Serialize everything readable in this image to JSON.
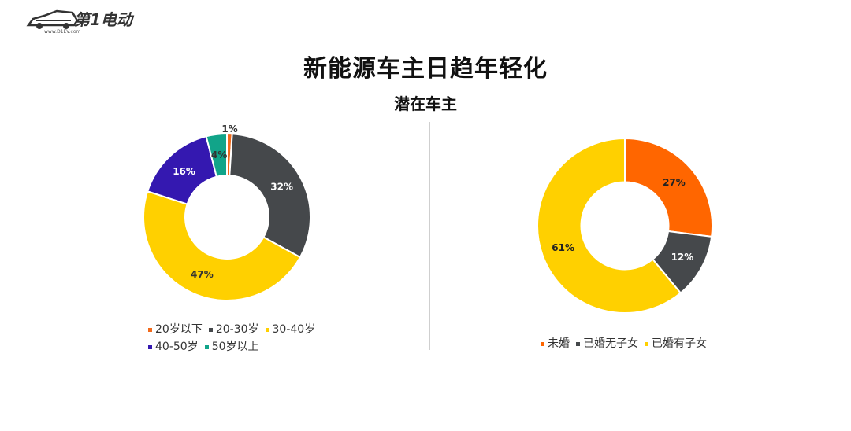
{
  "logo": {
    "text": "第1电动",
    "url_text": "www.D1EV.com"
  },
  "title": "新能源车主日趋年轻化",
  "subtitle": "潜在车主",
  "chart_data": [
    {
      "type": "pie",
      "donut": true,
      "title": "",
      "categories": [
        "20岁以下",
        "20-30岁",
        "30-40岁",
        "40-50岁",
        "50岁以上"
      ],
      "values": [
        1,
        32,
        47,
        16,
        4
      ],
      "labels": [
        "1%",
        "32%",
        "47%",
        "16%",
        "4%"
      ],
      "colors": [
        "#F26A1B",
        "#45484B",
        "#FFD000",
        "#3418B0",
        "#11A489"
      ],
      "label_colors": [
        "#333333",
        "#ffffff",
        "#333333",
        "#ffffff",
        "#333333"
      ],
      "legend_rows": [
        [
          "20岁以下",
          "20-30岁",
          "30-40岁"
        ],
        [
          "40-50岁",
          "50岁以上"
        ]
      ],
      "legend_position": "bottom"
    },
    {
      "type": "pie",
      "donut": true,
      "title": "",
      "categories": [
        "未婚",
        "已婚无子女",
        "已婚有子女"
      ],
      "values": [
        27,
        12,
        61
      ],
      "labels": [
        "27%",
        "12%",
        "61%"
      ],
      "colors": [
        "#FF6600",
        "#45484B",
        "#FFD000"
      ],
      "label_colors": [
        "#222222",
        "#ffffff",
        "#222222"
      ],
      "legend_rows": [
        [
          "未婚",
          "已婚无子女",
          "已婚有子女"
        ]
      ],
      "legend_position": "bottom"
    }
  ]
}
